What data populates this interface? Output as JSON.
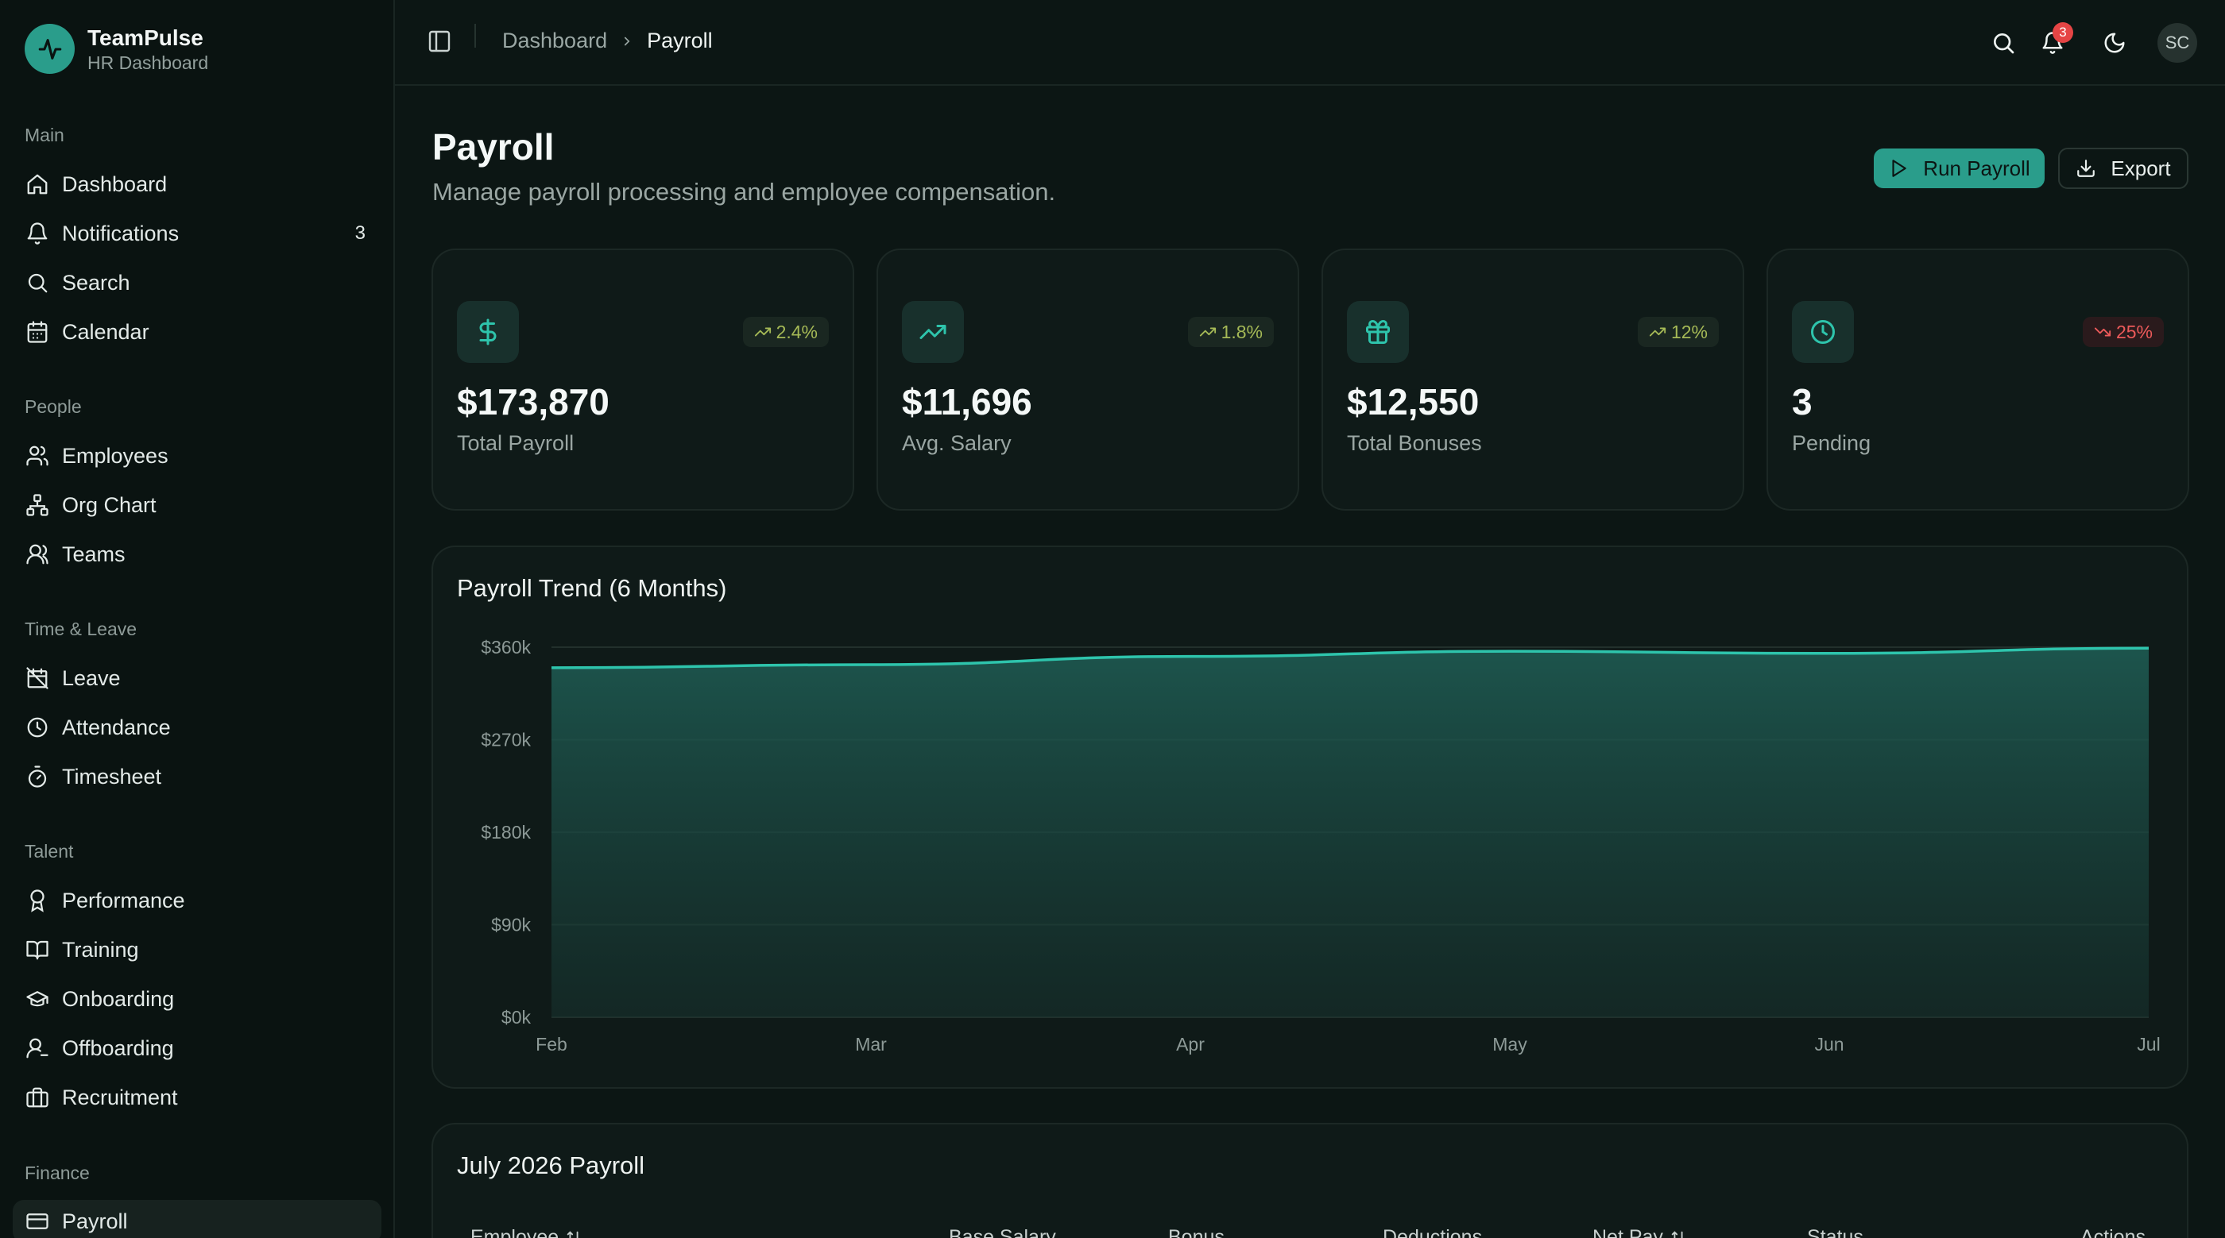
{
  "brand": {
    "name": "TeamPulse",
    "subtitle": "HR Dashboard"
  },
  "sidebar": {
    "sections": [
      {
        "label": "Main",
        "items": [
          {
            "label": "Dashboard",
            "icon": "home-icon"
          },
          {
            "label": "Notifications",
            "icon": "bell-icon",
            "badge": "3"
          },
          {
            "label": "Search",
            "icon": "search-icon"
          },
          {
            "label": "Calendar",
            "icon": "calendar-icon"
          }
        ]
      },
      {
        "label": "People",
        "items": [
          {
            "label": "Employees",
            "icon": "users-icon"
          },
          {
            "label": "Org Chart",
            "icon": "org-chart-icon"
          },
          {
            "label": "Teams",
            "icon": "user-icon"
          }
        ]
      },
      {
        "label": "Time & Leave",
        "items": [
          {
            "label": "Leave",
            "icon": "calendar-off-icon"
          },
          {
            "label": "Attendance",
            "icon": "clock-icon"
          },
          {
            "label": "Timesheet",
            "icon": "timer-icon"
          }
        ]
      },
      {
        "label": "Talent",
        "items": [
          {
            "label": "Performance",
            "icon": "award-icon"
          },
          {
            "label": "Training",
            "icon": "book-icon"
          },
          {
            "label": "Onboarding",
            "icon": "graduation-cap-icon"
          },
          {
            "label": "Offboarding",
            "icon": "user-minus-icon"
          },
          {
            "label": "Recruitment",
            "icon": "briefcase-icon"
          }
        ]
      },
      {
        "label": "Finance",
        "items": [
          {
            "label": "Payroll",
            "icon": "wallet-icon",
            "active": true
          }
        ]
      }
    ]
  },
  "topbar": {
    "breadcrumb": [
      "Dashboard",
      "Payroll"
    ],
    "notification_count": "3",
    "avatar_initials": "SC"
  },
  "page": {
    "title": "Payroll",
    "subtitle": "Manage payroll processing and employee compensation.",
    "run_label": "Run Payroll",
    "export_label": "Export"
  },
  "stats": [
    {
      "value": "$173,870",
      "label": "Total Payroll",
      "trend": "2.4%",
      "direction": "up",
      "icon": "dollar-icon"
    },
    {
      "value": "$11,696",
      "label": "Avg. Salary",
      "trend": "1.8%",
      "direction": "up",
      "icon": "trending-up-icon"
    },
    {
      "value": "$12,550",
      "label": "Total Bonuses",
      "trend": "12%",
      "direction": "up",
      "icon": "gift-icon"
    },
    {
      "value": "3",
      "label": "Pending",
      "trend": "25%",
      "direction": "down",
      "icon": "clock-icon"
    }
  ],
  "chart": {
    "title": "Payroll Trend (6 Months)"
  },
  "chart_data": {
    "type": "area",
    "title": "Payroll Trend (6 Months)",
    "x": [
      "Feb",
      "Mar",
      "Apr",
      "May",
      "Jun",
      "Jul"
    ],
    "y_ticks": [
      "$0k",
      "$90k",
      "$180k",
      "$270k",
      "$360k"
    ],
    "ylim": [
      0,
      360000
    ],
    "series": [
      {
        "values": [
          340000,
          343000,
          351000,
          356000,
          354000,
          359000
        ]
      }
    ],
    "grid": true,
    "color": "#2ec4ac"
  },
  "table": {
    "title": "July 2026 Payroll",
    "headers": [
      "Employee",
      "Base Salary",
      "Bonus",
      "Deductions",
      "Net Pay",
      "Status",
      "Actions"
    ]
  },
  "colors": {
    "accent": "#2a9d8b",
    "up": "#a5b956",
    "down": "#ec5a5a"
  }
}
